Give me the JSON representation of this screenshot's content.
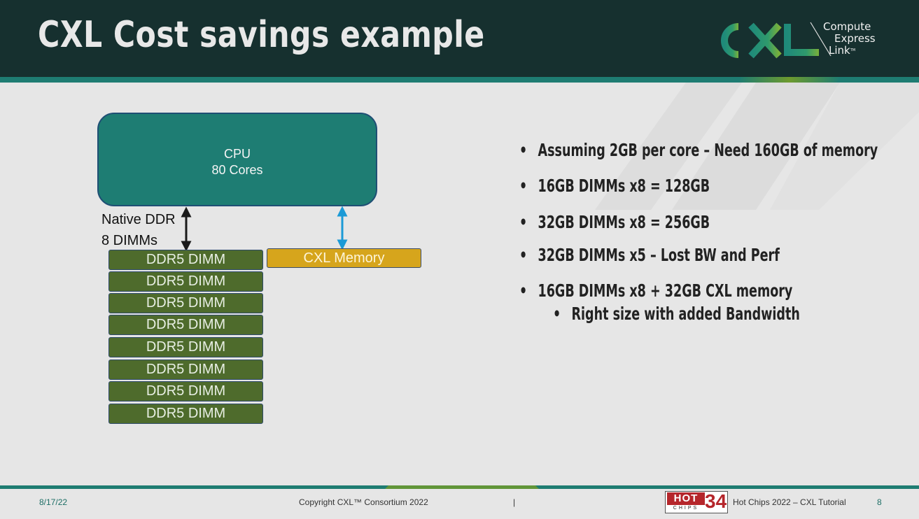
{
  "slide": {
    "title": "CXL Cost savings example",
    "logo": {
      "word": "CXL",
      "tagline": [
        "Compute",
        "Express",
        "Link"
      ],
      "tm": "TM"
    }
  },
  "diagram": {
    "cpu": {
      "line1": "CPU",
      "line2": "80 Cores"
    },
    "native_label": [
      "Native DDR",
      "8 DIMMs"
    ],
    "dimms": [
      "DDR5 DIMM",
      "DDR5 DIMM",
      "DDR5 DIMM",
      "DDR5 DIMM",
      "DDR5 DIMM",
      "DDR5 DIMM",
      "DDR5 DIMM",
      "DDR5 DIMM"
    ],
    "cxl_memory": "CXL Memory"
  },
  "bullets": [
    {
      "text": "Assuming 2GB per core – Need 160GB of memory",
      "level": 1
    },
    {
      "text": "16GB DIMMs x8 = 128GB",
      "level": 1
    },
    {
      "text": "32GB DIMMs x8 = 256GB",
      "level": 1
    },
    {
      "text": "32GB DIMMs x5 – Lost BW and Perf",
      "level": 1
    },
    {
      "text": "16GB DIMMs x8 + 32GB CXL memory",
      "level": 1
    },
    {
      "text": "Right size with added Bandwidth",
      "level": 2
    }
  ],
  "footer": {
    "date": "8/17/22",
    "copyright": "Copyright CXL™ Consortium 2022",
    "separator": "|",
    "hotchips_logo": {
      "word": "HOT",
      "sub": "CHIPS",
      "number": "34"
    },
    "event": "Hot Chips 2022 – CXL Tutorial",
    "page": "8"
  },
  "colors": {
    "header": "#16302f",
    "accent_teal": "#1e7c72",
    "cpu": "#1e7d73",
    "dimm": "#4e6b2c",
    "cxl_memory": "#d6a51c",
    "cxl_arrow": "#1b9ad6"
  }
}
